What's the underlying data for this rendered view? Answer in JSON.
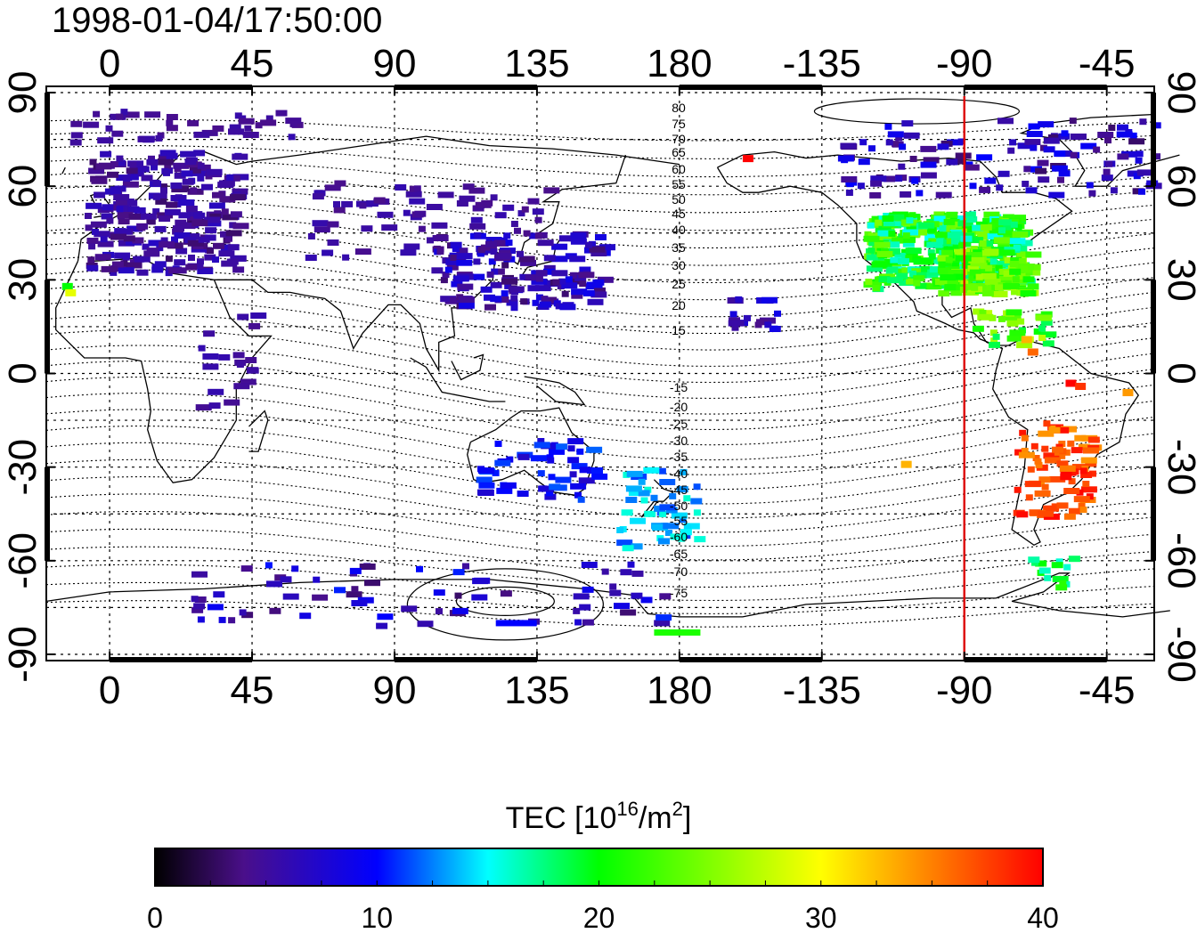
{
  "title": "1998-01-04/17:50:00",
  "colorbar": {
    "label_main": "TEC  [10",
    "label_sup1": "16",
    "label_mid": "/m",
    "label_sup2": "2",
    "label_end": "]",
    "ticks": [
      "0",
      "10",
      "20",
      "30",
      "40"
    ],
    "range": [
      0,
      40
    ],
    "stops": [
      {
        "v": 0,
        "color": "#000000"
      },
      {
        "v": 4,
        "color": "#4a0f8a"
      },
      {
        "v": 10,
        "color": "#0000ff"
      },
      {
        "v": 15,
        "color": "#00ffff"
      },
      {
        "v": 20,
        "color": "#00ff00"
      },
      {
        "v": 30,
        "color": "#ffff00"
      },
      {
        "v": 35,
        "color": "#ff8000"
      },
      {
        "v": 40,
        "color": "#ff0000"
      }
    ]
  },
  "map": {
    "lon_ticks": [
      "0",
      "45",
      "90",
      "135",
      "180",
      "-135",
      "-90",
      "-45"
    ],
    "lat_ticks_left": [
      "90",
      "60",
      "30",
      "0",
      "-30",
      "-60",
      "-90"
    ],
    "lat_ticks_right": [
      "90",
      "60",
      "30",
      "0",
      "-30",
      "-60",
      "-90"
    ],
    "lon_range": [
      -20,
      330
    ],
    "lat_range": [
      -92,
      92
    ],
    "meridian_line": {
      "lon": -90,
      "color": "#dd0000"
    },
    "contour_labels_north": [
      "80",
      "75",
      "70",
      "65",
      "60",
      "55",
      "50",
      "45",
      "40",
      "35",
      "30",
      "25",
      "20",
      "15"
    ],
    "contour_labels_south": [
      "-15",
      "-20",
      "-25",
      "-30",
      "-35",
      "-40",
      "-45",
      "-50",
      "-55",
      "-60",
      "-65",
      "-70",
      "-75"
    ]
  }
}
